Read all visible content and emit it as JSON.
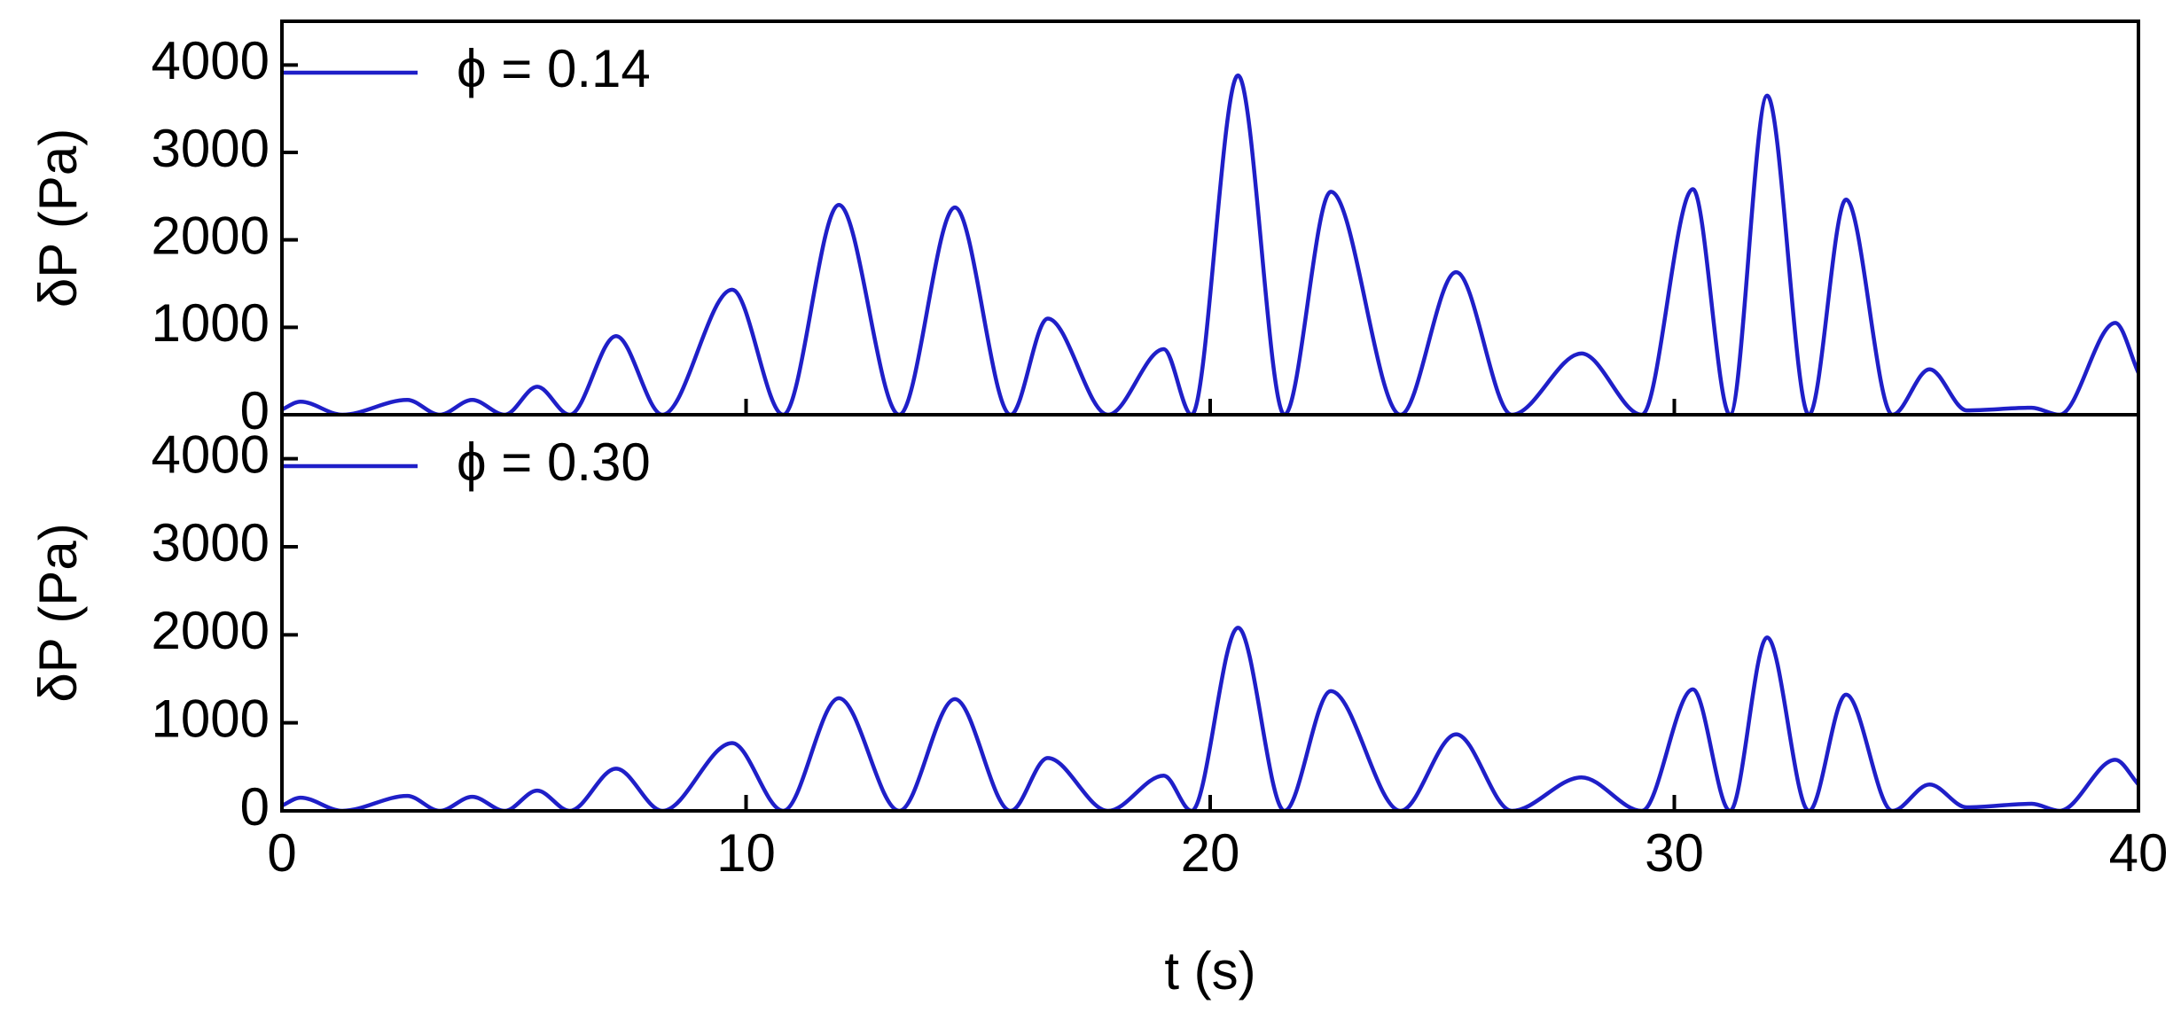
{
  "chart_data": [
    {
      "type": "line",
      "ylabel": "δP (Pa)",
      "x": [
        0,
        0.4,
        1.3,
        2.7,
        3.4,
        4.1,
        4.8,
        5.5,
        6.2,
        7.2,
        8.2,
        9.7,
        10.8,
        12.0,
        13.3,
        14.5,
        15.7,
        16.5,
        17.8,
        19.0,
        19.6,
        20.6,
        21.6,
        22.6,
        24.1,
        25.3,
        26.5,
        28.0,
        29.3,
        30.4,
        31.2,
        32.0,
        32.9,
        33.7,
        34.7,
        35.5,
        36.3,
        37.7,
        38.3,
        39.5,
        40
      ],
      "series": [
        {
          "name": "ϕ = 0.14",
          "color": "#1f1fc8",
          "values": [
            60,
            150,
            0,
            170,
            0,
            170,
            0,
            320,
            0,
            900,
            0,
            1430,
            0,
            2400,
            0,
            2370,
            0,
            1100,
            0,
            750,
            0,
            3880,
            0,
            2550,
            0,
            1630,
            0,
            700,
            0,
            2580,
            0,
            3650,
            0,
            2460,
            0,
            520,
            50,
            80,
            0,
            1050,
            480
          ]
        }
      ],
      "xlim": [
        0,
        40
      ],
      "ylim": [
        0,
        4500
      ],
      "yticks": [
        0,
        1000,
        2000,
        3000,
        4000
      ]
    },
    {
      "type": "line",
      "ylabel": "δP (Pa)",
      "xlabel": "t (s)",
      "x": [
        0,
        0.4,
        1.3,
        2.7,
        3.4,
        4.1,
        4.8,
        5.5,
        6.2,
        7.2,
        8.2,
        9.7,
        10.8,
        12.0,
        13.3,
        14.5,
        15.7,
        16.5,
        17.8,
        19.0,
        19.6,
        20.6,
        21.6,
        22.6,
        24.1,
        25.3,
        26.5,
        28.0,
        29.3,
        30.4,
        31.2,
        32.0,
        32.9,
        33.7,
        34.7,
        35.5,
        36.3,
        37.7,
        38.3,
        39.5,
        40
      ],
      "series": [
        {
          "name": "ϕ = 0.30",
          "color": "#1f1fc8",
          "values": [
            60,
            150,
            0,
            170,
            0,
            160,
            0,
            230,
            0,
            480,
            0,
            770,
            0,
            1280,
            0,
            1270,
            0,
            600,
            0,
            400,
            0,
            2080,
            0,
            1360,
            0,
            870,
            0,
            380,
            0,
            1380,
            0,
            1970,
            0,
            1320,
            0,
            300,
            40,
            80,
            0,
            580,
            300
          ]
        }
      ],
      "xlim": [
        0,
        40
      ],
      "xticks": [
        0,
        10,
        20,
        30,
        40
      ],
      "ylim": [
        0,
        4500
      ],
      "yticks": [
        0,
        1000,
        2000,
        3000,
        4000
      ]
    }
  ]
}
